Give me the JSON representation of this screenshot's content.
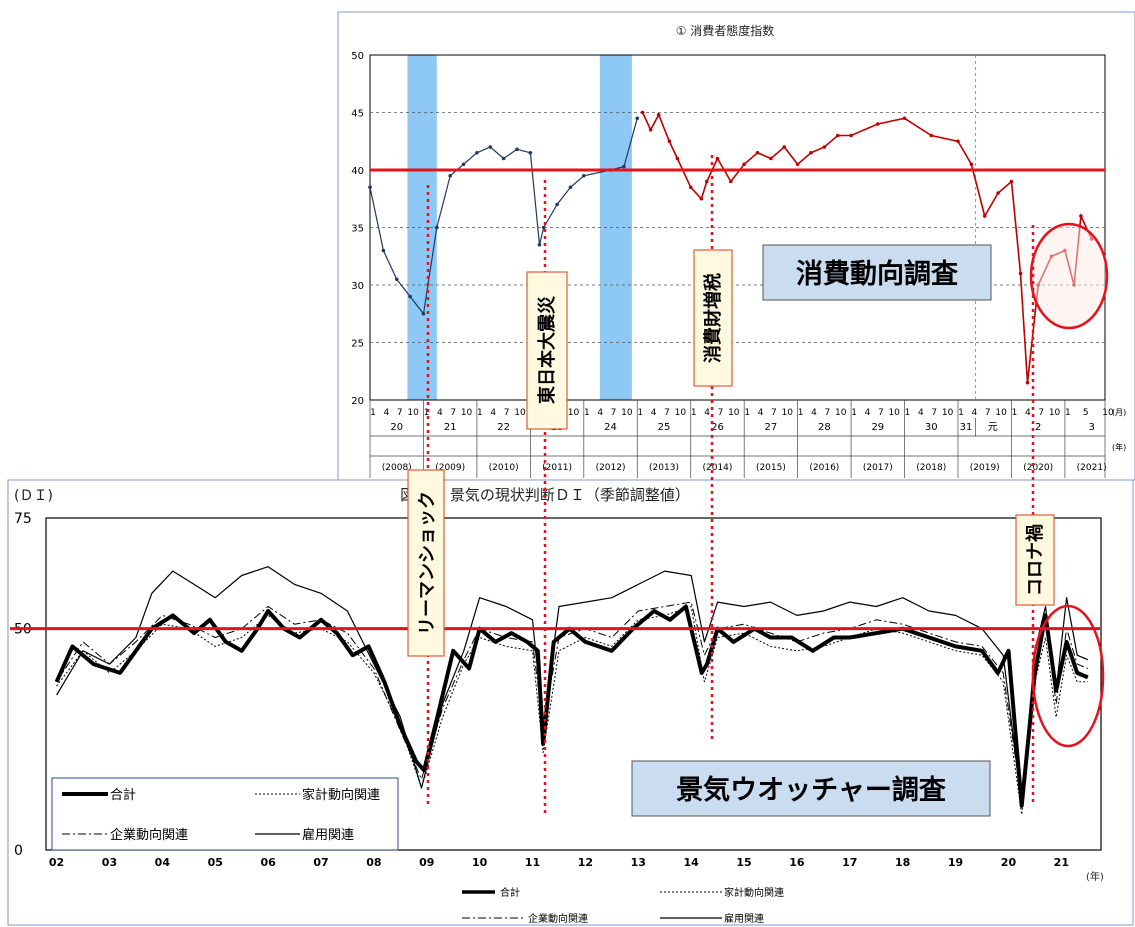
{
  "chart_data": [
    {
      "type": "line",
      "title": "① 消費者態度指数",
      "ylim": [
        20,
        50
      ],
      "yticks": [
        20,
        25,
        30,
        35,
        40,
        45,
        50
      ],
      "reference_line": 40,
      "x_unit": "(月)",
      "year_unit": "(年)",
      "month_ticks": [
        "1",
        "4",
        "7",
        "10"
      ],
      "last_month_ticks": [
        "1",
        "5",
        "10"
      ],
      "year_labels": [
        "20",
        "21",
        "22",
        "23",
        "24",
        "25",
        "26",
        "27",
        "28",
        "29",
        "30",
        "31",
        "元",
        "2",
        "3"
      ],
      "western_years": [
        "(2008)",
        "(2009)",
        "(2010)",
        "(2011)",
        "(2012)",
        "(2013)",
        "(2014)",
        "(2015)",
        "(2016)",
        "(2017)",
        "(2018)",
        "(2019)",
        "(2020)",
        "(2021)"
      ],
      "shaded_periods": [
        [
          2008.7,
          2009.25
        ],
        [
          2012.3,
          2012.9
        ]
      ],
      "series": [
        {
          "name": "",
          "color": "#1f3864",
          "x": [
            2008.0,
            2008.25,
            2008.5,
            2008.75,
            2009.0,
            2009.25,
            2009.5,
            2009.75,
            2010.0,
            2010.25,
            2010.5,
            2010.75,
            2011.0,
            2011.17,
            2011.25,
            2011.5,
            2011.75,
            2012.0,
            2012.5,
            2012.75,
            2013.0
          ],
          "values": [
            38.5,
            33.0,
            30.5,
            29.0,
            27.5,
            35.0,
            39.5,
            40.5,
            41.5,
            42.0,
            41.0,
            41.8,
            41.5,
            33.5,
            35.0,
            37.0,
            38.5,
            39.5,
            40.0,
            40.3,
            44.5
          ]
        },
        {
          "name": "",
          "color": "#c00000",
          "x": [
            2013.1,
            2013.25,
            2013.4,
            2013.6,
            2013.75,
            2014.0,
            2014.2,
            2014.3,
            2014.5,
            2014.75,
            2015.0,
            2015.25,
            2015.5,
            2015.75,
            2016.0,
            2016.25,
            2016.5,
            2016.75,
            2017.0,
            2017.5,
            2018.0,
            2018.5,
            2019.0,
            2019.25,
            2019.5,
            2019.75,
            2020.0,
            2020.17,
            2020.3,
            2020.5,
            2020.75,
            2021.0,
            2021.17,
            2021.3,
            2021.5
          ],
          "values": [
            45.0,
            43.5,
            44.8,
            42.5,
            41.0,
            38.5,
            37.5,
            39.0,
            41.0,
            39.0,
            40.5,
            41.5,
            41.0,
            42.0,
            40.5,
            41.5,
            42.0,
            43.0,
            43.0,
            44.0,
            44.5,
            43.0,
            42.5,
            40.5,
            36.0,
            38.0,
            39.0,
            31.0,
            21.5,
            30.0,
            32.5,
            33.0,
            30.0,
            36.0,
            34.0
          ]
        }
      ]
    },
    {
      "type": "line",
      "title": "図表２ 景気の現状判断ＤＩ（季節調整値）",
      "ylabel": "(ＤＩ)",
      "xlabel": "(年)",
      "ylim": [
        0,
        75
      ],
      "yticks": [
        0,
        50,
        75
      ],
      "reference_line": 50,
      "x_ticks": [
        "02",
        "03",
        "04",
        "05",
        "06",
        "07",
        "08",
        "09",
        "10",
        "11",
        "12",
        "13",
        "14",
        "15",
        "16",
        "17",
        "18",
        "19",
        "20",
        "21"
      ],
      "series": [
        {
          "name": "合計",
          "x": [
            2002.0,
            2002.3,
            2002.7,
            2003.2,
            2003.5,
            2003.8,
            2004.2,
            2004.6,
            2004.9,
            2005.2,
            2005.5,
            2005.8,
            2006.0,
            2006.3,
            2006.6,
            2007.0,
            2007.3,
            2007.6,
            2007.9,
            2008.2,
            2008.5,
            2008.8,
            2008.95,
            2009.2,
            2009.5,
            2009.8,
            2010.0,
            2010.3,
            2010.6,
            2010.9,
            2011.1,
            2011.2,
            2011.4,
            2011.7,
            2012.0,
            2012.5,
            2012.9,
            2013.3,
            2013.6,
            2013.9,
            2014.2,
            2014.3,
            2014.5,
            2014.8,
            2015.2,
            2015.5,
            2015.9,
            2016.3,
            2016.7,
            2017.0,
            2017.5,
            2018.0,
            2018.5,
            2019.0,
            2019.5,
            2019.8,
            2020.0,
            2020.25,
            2020.5,
            2020.7,
            2020.9,
            2021.1,
            2021.3,
            2021.5
          ],
          "values": [
            38,
            46,
            42,
            40,
            45,
            50,
            53,
            49,
            52,
            47,
            45,
            50,
            54,
            50,
            48,
            52,
            49,
            44,
            46,
            38,
            28,
            20,
            18,
            30,
            45,
            41,
            50,
            47,
            49,
            47,
            45,
            24,
            47,
            50,
            47,
            45,
            50,
            54,
            52,
            55,
            40,
            42,
            50,
            47,
            50,
            48,
            48,
            45,
            48,
            48,
            49,
            50,
            48,
            46,
            45,
            40,
            45,
            10,
            40,
            53,
            36,
            47,
            40,
            39
          ]
        },
        {
          "name": "家計動向関連",
          "x": [
            2002.0,
            2002.5,
            2003.0,
            2003.5,
            2004.0,
            2004.5,
            2005.0,
            2005.5,
            2006.0,
            2006.5,
            2007.0,
            2007.5,
            2008.0,
            2008.5,
            2008.9,
            2009.3,
            2009.7,
            2010.0,
            2010.5,
            2011.0,
            2011.2,
            2011.5,
            2012.0,
            2012.5,
            2013.0,
            2013.5,
            2014.0,
            2014.25,
            2014.5,
            2015.0,
            2015.5,
            2016.0,
            2016.5,
            2017.0,
            2017.5,
            2018.0,
            2018.5,
            2019.0,
            2019.5,
            2019.9,
            2020.25,
            2020.5,
            2020.7,
            2020.9,
            2021.1,
            2021.3,
            2021.5
          ],
          "values": [
            37,
            45,
            40,
            45,
            51,
            50,
            46,
            48,
            53,
            49,
            50,
            47,
            40,
            28,
            14,
            30,
            42,
            48,
            46,
            45,
            22,
            45,
            48,
            46,
            52,
            53,
            55,
            38,
            48,
            49,
            46,
            45,
            46,
            48,
            50,
            49,
            47,
            45,
            44,
            38,
            8,
            38,
            48,
            30,
            44,
            38,
            38
          ]
        },
        {
          "name": "企業動向関連",
          "x": [
            2002.0,
            2002.5,
            2003.0,
            2003.5,
            2004.0,
            2004.5,
            2005.0,
            2005.5,
            2006.0,
            2006.5,
            2007.0,
            2007.5,
            2008.0,
            2008.5,
            2008.9,
            2009.3,
            2009.7,
            2010.0,
            2010.5,
            2011.0,
            2011.2,
            2011.5,
            2012.0,
            2012.5,
            2013.0,
            2013.5,
            2014.0,
            2014.25,
            2014.5,
            2015.0,
            2015.5,
            2016.0,
            2016.5,
            2017.0,
            2017.5,
            2018.0,
            2018.5,
            2019.0,
            2019.5,
            2019.9,
            2020.25,
            2020.5,
            2020.7,
            2020.9,
            2021.1,
            2021.3,
            2021.5
          ],
          "values": [
            38,
            47,
            42,
            47,
            53,
            51,
            48,
            50,
            55,
            51,
            52,
            49,
            41,
            27,
            16,
            32,
            43,
            50,
            48,
            47,
            28,
            48,
            50,
            48,
            54,
            55,
            56,
            44,
            50,
            51,
            49,
            47,
            49,
            50,
            52,
            51,
            49,
            47,
            46,
            40,
            11,
            42,
            52,
            33,
            50,
            42,
            41
          ]
        },
        {
          "name": "雇用関連",
          "x": [
            2002.0,
            2002.5,
            2003.0,
            2003.5,
            2003.8,
            2004.2,
            2004.6,
            2005.0,
            2005.5,
            2006.0,
            2006.5,
            2007.0,
            2007.5,
            2008.0,
            2008.5,
            2008.9,
            2009.3,
            2009.7,
            2010.0,
            2010.5,
            2011.0,
            2011.2,
            2011.5,
            2012.0,
            2012.5,
            2013.0,
            2013.5,
            2014.0,
            2014.25,
            2014.5,
            2015.0,
            2015.5,
            2016.0,
            2016.5,
            2017.0,
            2017.5,
            2018.0,
            2018.5,
            2019.0,
            2019.5,
            2019.9,
            2020.25,
            2020.5,
            2020.7,
            2020.9,
            2021.1,
            2021.3,
            2021.5
          ],
          "values": [
            35,
            45,
            42,
            48,
            58,
            63,
            60,
            57,
            62,
            64,
            60,
            58,
            54,
            42,
            30,
            14,
            33,
            45,
            57,
            55,
            52,
            28,
            55,
            56,
            57,
            60,
            63,
            62,
            47,
            56,
            55,
            56,
            53,
            54,
            56,
            55,
            57,
            54,
            53,
            50,
            44,
            10,
            45,
            55,
            36,
            57,
            44,
            43
          ]
        }
      ]
    }
  ],
  "annotations": {
    "lehman": "リーマンショック",
    "quake": "東日本大震災",
    "tax": "消費財増税",
    "corona": "コロナ禍"
  },
  "survey_labels": {
    "consumer": "消費動向調査",
    "watcher": "景気ウオッチャー調査"
  },
  "colors": {
    "red": "#e8101a",
    "navy": "#1f3864",
    "darkred": "#c00000",
    "shade": "#8ec8f5",
    "boxfill": "#c9dcf0"
  }
}
